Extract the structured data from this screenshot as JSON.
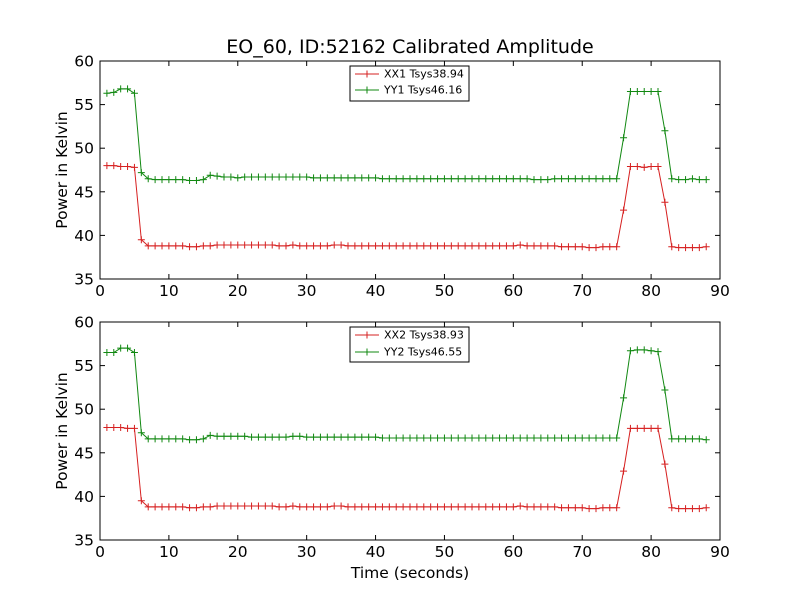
{
  "chart_data": [
    {
      "type": "line",
      "title": "EO_60, ID:52162 Calibrated Amplitude",
      "xlabel": "",
      "ylabel": "Power in Kelvin",
      "xlim": [
        0,
        90
      ],
      "ylim": [
        35,
        60
      ],
      "xticks": [
        "0",
        "10",
        "20",
        "30",
        "40",
        "50",
        "60",
        "70",
        "80",
        "90"
      ],
      "yticks": [
        "35",
        "40",
        "45",
        "50",
        "55",
        "60"
      ],
      "legend_position": "top-center",
      "grid": false,
      "x": [
        1,
        2,
        3,
        4,
        5,
        6,
        7,
        8,
        9,
        10,
        11,
        12,
        13,
        14,
        15,
        16,
        17,
        18,
        19,
        20,
        21,
        22,
        23,
        24,
        25,
        26,
        27,
        28,
        29,
        30,
        31,
        32,
        33,
        34,
        35,
        36,
        37,
        38,
        39,
        40,
        41,
        42,
        43,
        44,
        45,
        46,
        47,
        48,
        49,
        50,
        51,
        52,
        53,
        54,
        55,
        56,
        57,
        58,
        59,
        60,
        61,
        62,
        63,
        64,
        65,
        66,
        67,
        68,
        69,
        70,
        71,
        72,
        73,
        74,
        75,
        76,
        77,
        78,
        79,
        80,
        81,
        82,
        83,
        84,
        85,
        86,
        87,
        88
      ],
      "series": [
        {
          "name": "XX1 Tsys38.94",
          "color": "#d62020",
          "values": [
            48.0,
            48.0,
            47.9,
            47.9,
            47.8,
            39.5,
            38.8,
            38.8,
            38.8,
            38.8,
            38.8,
            38.8,
            38.7,
            38.7,
            38.8,
            38.8,
            38.9,
            38.9,
            38.9,
            38.9,
            38.9,
            38.9,
            38.9,
            38.9,
            38.9,
            38.8,
            38.8,
            38.9,
            38.8,
            38.8,
            38.8,
            38.8,
            38.8,
            38.9,
            38.9,
            38.8,
            38.8,
            38.8,
            38.8,
            38.8,
            38.8,
            38.8,
            38.8,
            38.8,
            38.8,
            38.8,
            38.8,
            38.8,
            38.8,
            38.8,
            38.8,
            38.8,
            38.8,
            38.8,
            38.8,
            38.8,
            38.8,
            38.8,
            38.8,
            38.8,
            38.9,
            38.8,
            38.8,
            38.8,
            38.8,
            38.8,
            38.7,
            38.7,
            38.7,
            38.7,
            38.6,
            38.6,
            38.7,
            38.7,
            38.7,
            42.9,
            47.9,
            47.9,
            47.8,
            47.9,
            47.9,
            43.8,
            38.7,
            38.6,
            38.6,
            38.6,
            38.6,
            38.7
          ]
        },
        {
          "name": "YY1 Tsys46.16",
          "color": "#118811",
          "values": [
            56.3,
            56.4,
            56.8,
            56.8,
            56.3,
            47.2,
            46.5,
            46.4,
            46.4,
            46.4,
            46.4,
            46.4,
            46.3,
            46.3,
            46.4,
            46.9,
            46.8,
            46.7,
            46.7,
            46.6,
            46.7,
            46.7,
            46.7,
            46.7,
            46.7,
            46.7,
            46.7,
            46.7,
            46.7,
            46.7,
            46.6,
            46.6,
            46.6,
            46.6,
            46.6,
            46.6,
            46.6,
            46.6,
            46.6,
            46.6,
            46.5,
            46.5,
            46.5,
            46.5,
            46.5,
            46.5,
            46.5,
            46.5,
            46.5,
            46.5,
            46.5,
            46.5,
            46.5,
            46.5,
            46.5,
            46.5,
            46.5,
            46.5,
            46.5,
            46.5,
            46.5,
            46.5,
            46.4,
            46.4,
            46.4,
            46.5,
            46.5,
            46.5,
            46.5,
            46.5,
            46.5,
            46.5,
            46.5,
            46.5,
            46.5,
            51.2,
            56.5,
            56.5,
            56.5,
            56.5,
            56.5,
            52.0,
            46.5,
            46.4,
            46.4,
            46.5,
            46.4,
            46.4
          ]
        }
      ]
    },
    {
      "type": "line",
      "title": "",
      "xlabel": "Time (seconds)",
      "ylabel": "Power in Kelvin",
      "xlim": [
        0,
        90
      ],
      "ylim": [
        35,
        60
      ],
      "xticks": [
        "0",
        "10",
        "20",
        "30",
        "40",
        "50",
        "60",
        "70",
        "80",
        "90"
      ],
      "yticks": [
        "35",
        "40",
        "45",
        "50",
        "55",
        "60"
      ],
      "legend_position": "top-center",
      "grid": false,
      "x": [
        1,
        2,
        3,
        4,
        5,
        6,
        7,
        8,
        9,
        10,
        11,
        12,
        13,
        14,
        15,
        16,
        17,
        18,
        19,
        20,
        21,
        22,
        23,
        24,
        25,
        26,
        27,
        28,
        29,
        30,
        31,
        32,
        33,
        34,
        35,
        36,
        37,
        38,
        39,
        40,
        41,
        42,
        43,
        44,
        45,
        46,
        47,
        48,
        49,
        50,
        51,
        52,
        53,
        54,
        55,
        56,
        57,
        58,
        59,
        60,
        61,
        62,
        63,
        64,
        65,
        66,
        67,
        68,
        69,
        70,
        71,
        72,
        73,
        74,
        75,
        76,
        77,
        78,
        79,
        80,
        81,
        82,
        83,
        84,
        85,
        86,
        87,
        88
      ],
      "series": [
        {
          "name": "XX2 Tsys38.93",
          "color": "#d62020",
          "values": [
            47.9,
            47.9,
            47.9,
            47.8,
            47.8,
            39.5,
            38.8,
            38.8,
            38.8,
            38.8,
            38.8,
            38.8,
            38.7,
            38.7,
            38.8,
            38.8,
            38.9,
            38.9,
            38.9,
            38.9,
            38.9,
            38.9,
            38.9,
            38.9,
            38.9,
            38.8,
            38.8,
            38.9,
            38.8,
            38.8,
            38.8,
            38.8,
            38.8,
            38.9,
            38.9,
            38.8,
            38.8,
            38.8,
            38.8,
            38.8,
            38.8,
            38.8,
            38.8,
            38.8,
            38.8,
            38.8,
            38.8,
            38.8,
            38.8,
            38.8,
            38.8,
            38.8,
            38.8,
            38.8,
            38.8,
            38.8,
            38.8,
            38.8,
            38.8,
            38.8,
            38.9,
            38.8,
            38.8,
            38.8,
            38.8,
            38.8,
            38.7,
            38.7,
            38.7,
            38.7,
            38.6,
            38.6,
            38.7,
            38.7,
            38.7,
            42.9,
            47.8,
            47.8,
            47.8,
            47.8,
            47.8,
            43.7,
            38.7,
            38.6,
            38.6,
            38.6,
            38.6,
            38.7
          ]
        },
        {
          "name": "YY2 Tsys46.55",
          "color": "#118811",
          "values": [
            56.5,
            56.5,
            57.0,
            57.0,
            56.5,
            47.3,
            46.6,
            46.6,
            46.6,
            46.6,
            46.6,
            46.6,
            46.5,
            46.5,
            46.6,
            47.0,
            46.9,
            46.9,
            46.9,
            46.9,
            46.9,
            46.8,
            46.8,
            46.8,
            46.8,
            46.8,
            46.8,
            46.9,
            46.9,
            46.8,
            46.8,
            46.8,
            46.8,
            46.8,
            46.8,
            46.8,
            46.8,
            46.8,
            46.8,
            46.8,
            46.7,
            46.7,
            46.7,
            46.7,
            46.7,
            46.7,
            46.7,
            46.7,
            46.7,
            46.7,
            46.7,
            46.7,
            46.7,
            46.7,
            46.7,
            46.7,
            46.7,
            46.7,
            46.7,
            46.7,
            46.7,
            46.7,
            46.7,
            46.7,
            46.7,
            46.7,
            46.7,
            46.7,
            46.7,
            46.7,
            46.7,
            46.7,
            46.7,
            46.7,
            46.7,
            51.3,
            56.7,
            56.8,
            56.8,
            56.7,
            56.6,
            52.2,
            46.6,
            46.6,
            46.6,
            46.6,
            46.6,
            46.5
          ]
        }
      ]
    }
  ]
}
